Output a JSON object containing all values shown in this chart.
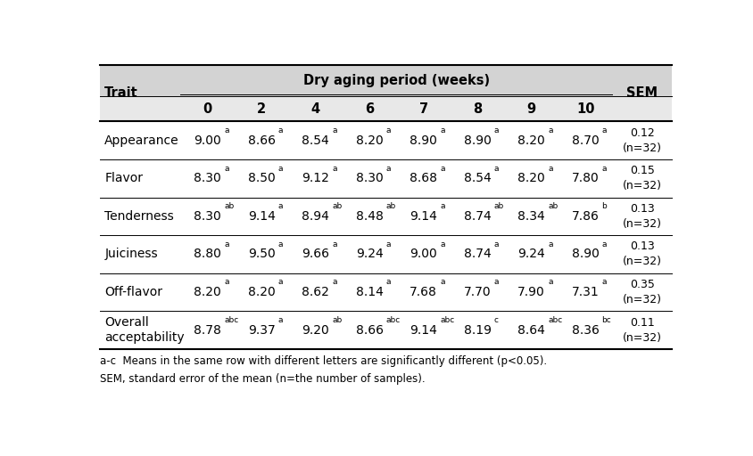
{
  "header_group": "Dry aging period (weeks)",
  "col_trait": "Trait",
  "col_sem": "SEM",
  "subheaders": [
    "0",
    "2",
    "4",
    "6",
    "7",
    "8",
    "9",
    "10"
  ],
  "rows": [
    {
      "trait": "Appearance",
      "values": [
        "9.00",
        "8.66",
        "8.54",
        "8.20",
        "8.90",
        "8.90",
        "8.20",
        "8.70"
      ],
      "superscripts": [
        "a",
        "a",
        "a",
        "a",
        "a",
        "a",
        "a",
        "a"
      ],
      "sem": "0.12\n(n=32)"
    },
    {
      "trait": "Flavor",
      "values": [
        "8.30",
        "8.50",
        "9.12",
        "8.30",
        "8.68",
        "8.54",
        "8.20",
        "7.80"
      ],
      "superscripts": [
        "a",
        "a",
        "a",
        "a",
        "a",
        "a",
        "a",
        "a"
      ],
      "sem": "0.15\n(n=32)"
    },
    {
      "trait": "Tenderness",
      "values": [
        "8.30",
        "9.14",
        "8.94",
        "8.48",
        "9.14",
        "8.74",
        "8.34",
        "7.86"
      ],
      "superscripts": [
        "ab",
        "a",
        "ab",
        "ab",
        "a",
        "ab",
        "ab",
        "b"
      ],
      "sem": "0.13\n(n=32)"
    },
    {
      "trait": "Juiciness",
      "values": [
        "8.80",
        "9.50",
        "9.66",
        "9.24",
        "9.00",
        "8.74",
        "9.24",
        "8.90"
      ],
      "superscripts": [
        "a",
        "a",
        "a",
        "a",
        "a",
        "a",
        "a",
        "a"
      ],
      "sem": "0.13\n(n=32)"
    },
    {
      "trait": "Off-flavor",
      "values": [
        "8.20",
        "8.20",
        "8.62",
        "8.14",
        "7.68",
        "7.70",
        "7.90",
        "7.31"
      ],
      "superscripts": [
        "a",
        "a",
        "a",
        "a",
        "a",
        "a",
        "a",
        "a"
      ],
      "sem": "0.35\n(n=32)"
    },
    {
      "trait": "Overall\nacceptability",
      "values": [
        "8.78",
        "9.37",
        "9.20",
        "8.66",
        "9.14",
        "8.19",
        "8.64",
        "8.36"
      ],
      "superscripts": [
        "abc",
        "a",
        "ab",
        "abc",
        "abc",
        "c",
        "abc",
        "bc"
      ],
      "sem": "0.11\n(n=32)"
    }
  ],
  "footnotes": [
    "a-c  Means in the same row with different letters are significantly different (p<0.05).",
    "SEM, standard error of the mean (n=the number of samples)."
  ],
  "bg_color_header": "#d3d3d3",
  "bg_color_subheader": "#e8e8e8",
  "bg_color_body": "#ffffff",
  "text_color": "#000000",
  "line_color": "#000000",
  "font_size_header": 10.5,
  "font_size_body": 10,
  "font_size_footnote": 8.5
}
